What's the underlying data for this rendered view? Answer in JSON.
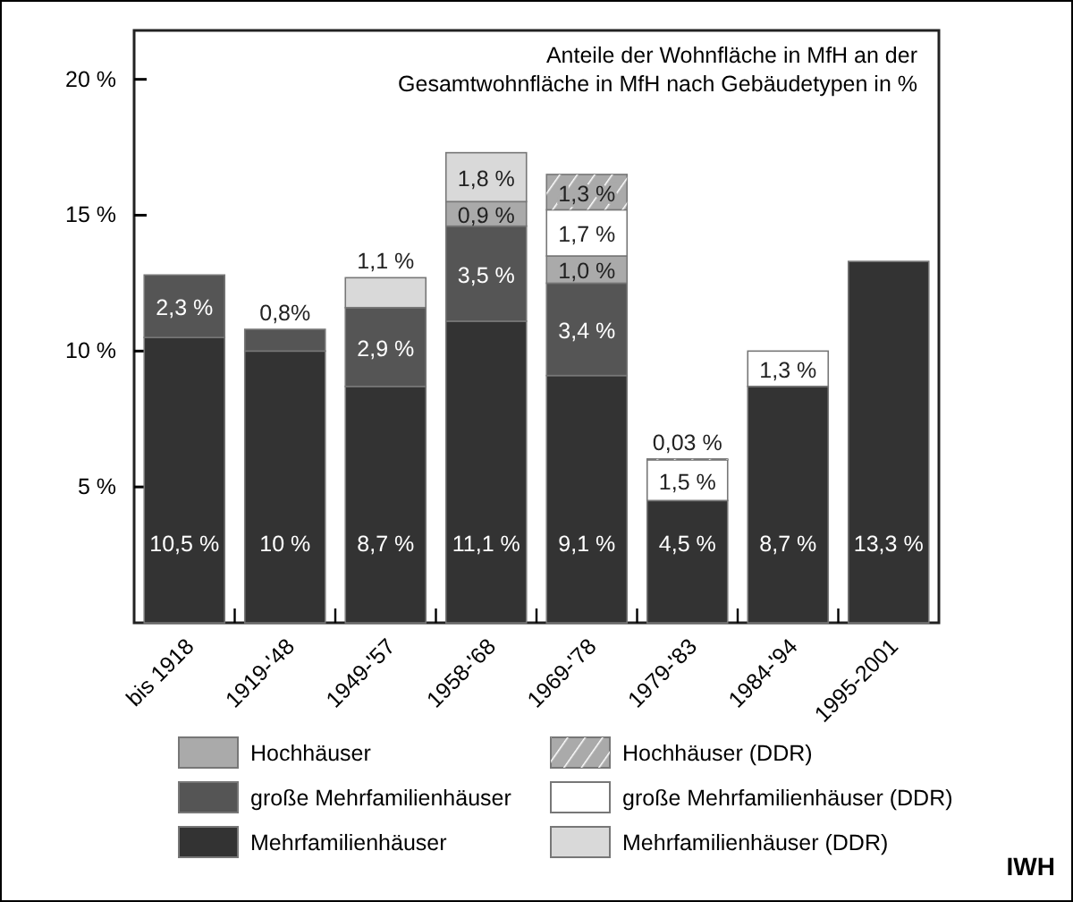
{
  "chart_data": {
    "type": "bar",
    "stacked": true,
    "title": "Anteile der Wohnfläche in MfH an der Gesamtwohnfläche in MfH nach Gebäudetypen in %",
    "categories": [
      "bis 1918",
      "1919-'48",
      "1949-'57",
      "1958-'68",
      "1969-'78",
      "1979-'83",
      "1984-'94",
      "1995-2001"
    ],
    "series": [
      {
        "name": "Mehrfamilienhäuser",
        "color": "#333333",
        "values": [
          10.5,
          10,
          8.7,
          11.1,
          9.1,
          4.5,
          8.7,
          13.3
        ],
        "value_labels": [
          "10,5 %",
          "10 %",
          "8,7 %",
          "11,1 %",
          "9,1 %",
          "4,5 %",
          "8,7 %",
          "13,3 %"
        ]
      },
      {
        "name": "große Mehrfamilienhäuser",
        "color": "#555555",
        "values": [
          2.3,
          0.8,
          2.9,
          3.5,
          3.4,
          null,
          null,
          null
        ],
        "value_labels": [
          "2,3 %",
          "0,8%",
          "2,9 %",
          "3,5 %",
          "3,4 %",
          null,
          null,
          null
        ]
      },
      {
        "name": "Hochhäuser",
        "color": "#aaaaaa",
        "values": [
          null,
          null,
          null,
          0.9,
          1.0,
          null,
          null,
          null
        ],
        "value_labels": [
          null,
          null,
          null,
          "0,9 %",
          "1,0 %",
          null,
          null,
          null
        ]
      },
      {
        "name": "Mehrfamilienhäuser (DDR)",
        "color": "#d9d9d9",
        "values": [
          null,
          null,
          1.1,
          1.8,
          null,
          null,
          null,
          null
        ],
        "value_labels": [
          null,
          null,
          "1,1 %",
          "1,8 %",
          null,
          null,
          null,
          null
        ]
      },
      {
        "name": "große Mehrfamilienhäuser (DDR)",
        "color": "#ffffff",
        "values": [
          null,
          null,
          null,
          null,
          1.7,
          1.5,
          1.3,
          null
        ],
        "value_labels": [
          null,
          null,
          null,
          null,
          "1,7 %",
          "1,5 %",
          "1,3 %",
          null
        ]
      },
      {
        "name": "Hochhäuser (DDR)",
        "color": "#aaaaaa",
        "values": [
          null,
          null,
          null,
          null,
          1.3,
          0.03,
          null,
          null
        ],
        "value_labels": [
          null,
          null,
          null,
          null,
          "1,3 %",
          "0,03 %",
          null,
          null
        ]
      }
    ],
    "ylim": [
      0,
      21.8
    ],
    "yticks": [
      {
        "value": 5,
        "label": "5 %"
      },
      {
        "value": 10,
        "label": "10 %"
      },
      {
        "value": 15,
        "label": "15 %"
      },
      {
        "value": 20,
        "label": "20 %"
      }
    ],
    "legend": "bottom",
    "annotations": [
      "IWH"
    ]
  }
}
